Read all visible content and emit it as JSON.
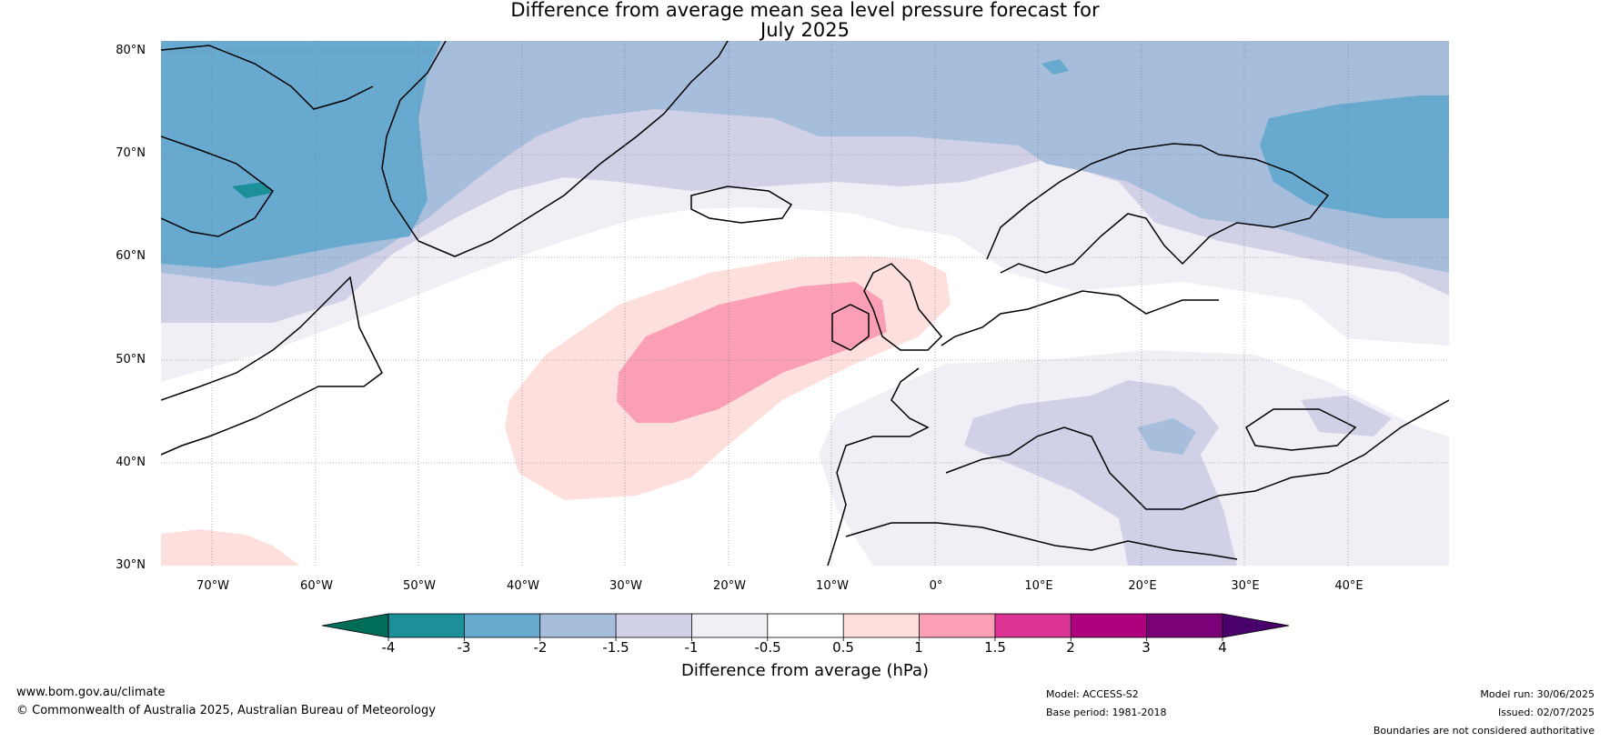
{
  "title": {
    "line1": "Difference from average mean sea level pressure forecast for",
    "line2": "July 2025"
  },
  "map": {
    "lat_labels": [
      "80°N",
      "70°N",
      "60°N",
      "50°N",
      "40°N",
      "30°N"
    ],
    "lon_labels": [
      "70°W",
      "60°W",
      "50°W",
      "40°W",
      "30°W",
      "20°W",
      "10°W",
      "0°",
      "10°E",
      "20°E",
      "30°E",
      "40°E"
    ]
  },
  "colorbar": {
    "ticks": [
      "-4",
      "-3",
      "-2",
      "-1.5",
      "-1",
      "-0.5",
      "0.5",
      "1",
      "1.5",
      "2",
      "3",
      "4"
    ],
    "colors": {
      "below_min": "#006d5b",
      "bins": [
        "#1c9099",
        "#67a9cf",
        "#a6bddb",
        "#d0d1e6",
        "#f1eef6",
        "#ffffff",
        "#fde0dd",
        "#fa9fb5",
        "#dd3497",
        "#ae017e",
        "#7a0177"
      ],
      "above_max": "#49006a"
    },
    "label": "Difference from average (hPa)"
  },
  "footer": {
    "website": "www.bom.gov.au/climate",
    "copyright": "© Commonwealth of Australia 2025, Australian Bureau of Meteorology",
    "model": "Model: ACCESS-S2",
    "base_period": "Base period: 1981-2018",
    "model_run": "Model run: 30/06/2025",
    "issued": "Issued: 02/07/2025",
    "disclaimer": "Boundaries are not considered authoritative"
  }
}
